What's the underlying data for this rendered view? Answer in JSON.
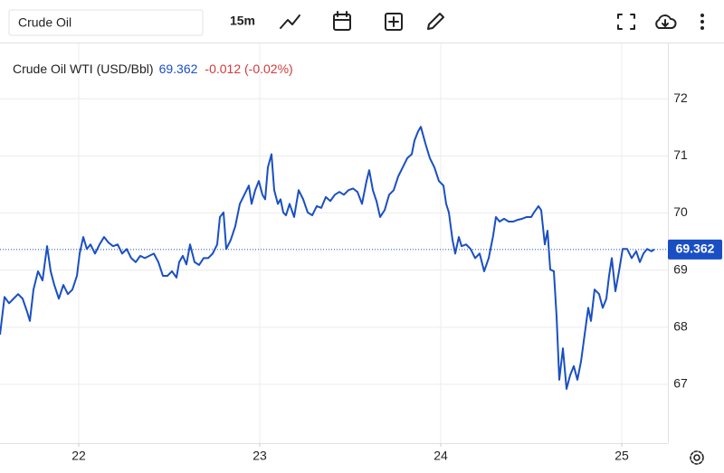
{
  "toolbar": {
    "search": "Crude Oil",
    "interval": "15m"
  },
  "chart_data": {
    "type": "line",
    "change_label": "-0.012 (-0.02%)",
    "x": [
      21.565,
      21.59,
      21.615,
      21.64,
      21.665,
      21.69,
      21.715,
      21.73,
      21.75,
      21.775,
      21.8,
      21.825,
      21.845,
      21.865,
      21.89,
      21.915,
      21.94,
      21.965,
      21.99,
      22.005,
      22.025,
      22.045,
      22.065,
      22.09,
      22.115,
      22.14,
      22.165,
      22.19,
      22.215,
      22.24,
      22.265,
      22.29,
      22.315,
      22.34,
      22.365,
      22.39,
      22.415,
      22.44,
      22.465,
      22.49,
      22.515,
      22.54,
      22.555,
      22.575,
      22.595,
      22.615,
      22.64,
      22.665,
      22.69,
      22.715,
      22.74,
      22.765,
      22.78,
      22.8,
      22.815,
      22.84,
      22.865,
      22.89,
      22.915,
      22.94,
      22.955,
      22.975,
      22.995,
      23.015,
      23.03,
      23.045,
      23.065,
      23.08,
      23.1,
      23.115,
      23.13,
      23.145,
      23.165,
      23.19,
      23.215,
      23.24,
      23.265,
      23.29,
      23.315,
      23.34,
      23.365,
      23.39,
      23.415,
      23.44,
      23.465,
      23.49,
      23.515,
      23.54,
      23.565,
      23.59,
      23.605,
      23.625,
      23.645,
      23.665,
      23.69,
      23.715,
      23.74,
      23.765,
      23.79,
      23.815,
      23.84,
      23.855,
      23.875,
      23.89,
      23.915,
      23.94,
      23.965,
      23.99,
      24.015,
      24.03,
      24.045,
      24.065,
      24.08,
      24.1,
      24.115,
      24.14,
      24.165,
      24.19,
      24.215,
      24.24,
      24.265,
      24.29,
      24.305,
      24.325,
      24.35,
      24.375,
      24.4,
      24.425,
      24.45,
      24.475,
      24.5,
      24.515,
      24.54,
      24.555,
      24.575,
      24.59,
      24.605,
      24.625,
      24.64,
      24.655,
      24.675,
      24.695,
      24.715,
      24.735,
      24.755,
      24.775,
      24.795,
      24.815,
      24.83,
      24.85,
      24.875,
      24.895,
      24.915,
      24.93,
      24.945,
      24.965,
      24.985,
      25.005,
      25.03,
      25.055,
      25.08,
      25.1,
      25.12,
      25.14,
      25.165,
      25.18
    ],
    "series": [
      {
        "name": "Crude Oil WTI (USD/Bbl)",
        "color": "#1a4fc4",
        "values": [
          67.87,
          68.53,
          68.42,
          68.5,
          68.58,
          68.5,
          68.27,
          68.11,
          68.66,
          68.98,
          68.82,
          69.42,
          68.98,
          68.74,
          68.5,
          68.74,
          68.58,
          68.66,
          68.9,
          69.29,
          69.58,
          69.37,
          69.45,
          69.29,
          69.45,
          69.58,
          69.48,
          69.42,
          69.45,
          69.29,
          69.37,
          69.21,
          69.14,
          69.25,
          69.21,
          69.25,
          69.29,
          69.14,
          68.9,
          68.9,
          68.98,
          68.87,
          69.14,
          69.25,
          69.1,
          69.45,
          69.14,
          69.09,
          69.21,
          69.21,
          69.29,
          69.45,
          69.93,
          70.01,
          69.37,
          69.53,
          69.77,
          70.16,
          70.32,
          70.48,
          70.16,
          70.4,
          70.56,
          70.32,
          70.24,
          70.8,
          71.03,
          70.4,
          70.16,
          70.24,
          70.01,
          69.96,
          70.16,
          69.93,
          70.4,
          70.24,
          70.01,
          69.96,
          70.12,
          70.09,
          70.28,
          70.21,
          70.32,
          70.37,
          70.32,
          70.4,
          70.43,
          70.37,
          70.16,
          70.56,
          70.75,
          70.4,
          70.21,
          69.93,
          70.05,
          70.32,
          70.4,
          70.64,
          70.8,
          70.96,
          71.03,
          71.27,
          71.43,
          71.51,
          71.22,
          70.96,
          70.8,
          70.56,
          70.48,
          70.16,
          70.01,
          69.53,
          69.29,
          69.58,
          69.42,
          69.45,
          69.37,
          69.21,
          69.29,
          68.98,
          69.21,
          69.61,
          69.93,
          69.85,
          69.9,
          69.85,
          69.85,
          69.88,
          69.9,
          69.93,
          69.93,
          70.01,
          70.12,
          70.05,
          69.45,
          69.69,
          69.01,
          68.98,
          68.19,
          67.08,
          67.63,
          66.92,
          67.16,
          67.32,
          67.08,
          67.4,
          67.87,
          68.34,
          68.11,
          68.66,
          68.58,
          68.34,
          68.5,
          68.9,
          69.21,
          68.63,
          68.98,
          69.37,
          69.37,
          69.21,
          69.33,
          69.14,
          69.29,
          69.37,
          69.33,
          69.362
        ]
      }
    ],
    "xlim": [
      21.565,
      25.255
    ],
    "xticks": [
      22,
      23,
      24,
      25
    ],
    "ylim": [
      65.97,
      72.97
    ],
    "yticks": [
      67,
      68,
      69,
      70,
      71,
      72
    ],
    "grid": true
  }
}
